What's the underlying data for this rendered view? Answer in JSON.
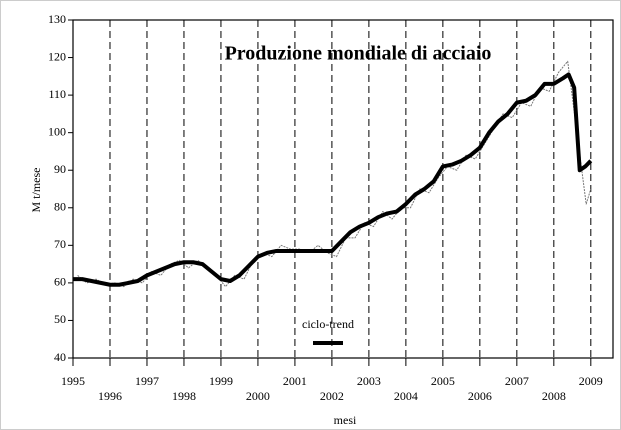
{
  "chart_data": {
    "type": "line",
    "title": "Produzione mondiale di acciaio",
    "ylabel": "M t/mese",
    "xlabel": "mesi",
    "xlim": [
      1995,
      2009.6
    ],
    "ylim": [
      40,
      130
    ],
    "xticks": [
      1995,
      1996,
      1997,
      1998,
      1999,
      2000,
      2001,
      2002,
      2003,
      2004,
      2005,
      2006,
      2007,
      2008,
      2009
    ],
    "yticks": [
      40,
      50,
      60,
      70,
      80,
      90,
      100,
      110,
      120,
      130
    ],
    "grid": "x-dashed",
    "legend": "bottom",
    "series": [
      {
        "color": "#777777",
        "style": "dotted",
        "x": [
          1995.125,
          1995.375,
          1995.625,
          1995.875,
          1996.125,
          1996.375,
          1996.625,
          1996.875,
          1997.125,
          1997.375,
          1997.625,
          1997.875,
          1998.125,
          1998.375,
          1998.625,
          1998.875,
          1999.125,
          1999.375,
          1999.625,
          1999.875,
          2000.125,
          2000.375,
          2000.625,
          2000.875,
          2001.125,
          2001.375,
          2001.625,
          2001.875,
          2002.125,
          2002.375,
          2002.625,
          2002.875,
          2003.125,
          2003.375,
          2003.625,
          2003.875,
          2004.125,
          2004.375,
          2004.625,
          2004.875,
          2005.125,
          2005.375,
          2005.625,
          2005.875,
          2006.125,
          2006.375,
          2006.625,
          2006.875,
          2007.125,
          2007.375,
          2007.625,
          2007.875,
          2008.125,
          2008.375,
          2008.625,
          2008.875,
          2009.0
        ],
        "values": [
          62,
          60,
          61,
          59.5,
          60,
          59,
          61,
          60,
          63,
          62,
          65,
          66,
          64,
          66,
          64,
          62,
          59,
          62,
          61,
          66,
          68,
          67,
          70,
          69,
          69,
          68,
          70,
          68,
          67,
          72,
          72,
          76,
          75,
          79,
          77,
          80,
          80,
          85,
          84,
          88,
          91,
          90,
          94,
          93,
          97,
          101,
          105,
          104,
          108,
          107,
          112,
          111,
          116,
          119,
          100,
          81,
          85
        ]
      },
      {
        "name": "ciclo-trend",
        "color": "#000000",
        "style": "thick",
        "x": [
          1995,
          1995.25,
          1995.5,
          1995.75,
          1996,
          1996.25,
          1996.5,
          1996.75,
          1997,
          1997.25,
          1997.5,
          1997.75,
          1998,
          1998.25,
          1998.5,
          1998.75,
          1999,
          1999.25,
          1999.5,
          1999.75,
          2000,
          2000.25,
          2000.5,
          2000.75,
          2001,
          2001.25,
          2001.5,
          2001.75,
          2002,
          2002.25,
          2002.5,
          2002.75,
          2003,
          2003.25,
          2003.5,
          2003.75,
          2004,
          2004.25,
          2004.5,
          2004.75,
          2005,
          2005.25,
          2005.5,
          2005.75,
          2006,
          2006.25,
          2006.5,
          2006.75,
          2007,
          2007.25,
          2007.5,
          2007.75,
          2008,
          2008.25,
          2008.4,
          2008.55,
          2008.7,
          2008.85,
          2009.0
        ],
        "values": [
          61,
          61,
          60.5,
          60,
          59.5,
          59.5,
          60,
          60.5,
          62,
          63,
          64,
          65,
          65.5,
          65.5,
          65,
          63,
          61,
          60.5,
          62,
          64.5,
          67,
          68,
          68.5,
          68.5,
          68.5,
          68.5,
          68.5,
          68.5,
          68.5,
          71,
          73.5,
          75,
          76,
          77.5,
          78.5,
          79,
          81,
          83.5,
          85,
          87,
          91,
          91.5,
          92.5,
          94,
          96,
          100,
          103,
          105,
          108,
          108.5,
          110,
          113,
          113,
          114.5,
          115.5,
          112,
          90,
          91,
          92.5
        ]
      }
    ]
  }
}
